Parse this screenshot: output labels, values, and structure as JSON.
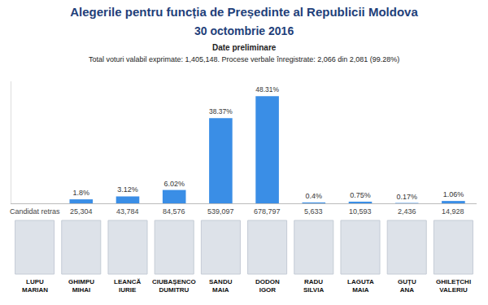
{
  "chart_data": {
    "type": "bar",
    "title": "Alegerile pentru funcția de Președinte al Republicii Moldova",
    "subtitle": "30 octombrie 2016",
    "annotations": [
      "Date preliminare",
      "Total voturi valabil exprimate: 1,405,148. Procese verbale înregistrate: 2,066 din 2,081 (99.28%)"
    ],
    "categories": [
      "LUPU MARIAN",
      "GHIMPU MIHAI",
      "LEANCĂ IURIE",
      "CIUBAȘENCO DUMITRU",
      "SANDU MAIA",
      "DODON IGOR",
      "RADU SILVIA",
      "LAGUTA MAIA",
      "GUȚU ANA",
      "GHILEȚCHI VALERIU"
    ],
    "values": [
      null,
      1.8,
      3.12,
      6.02,
      38.37,
      48.31,
      0.4,
      0.75,
      0.17,
      1.06
    ],
    "value_labels": [
      null,
      "1.8%",
      "3.12%",
      "6.02%",
      "38.37%",
      "48.31%",
      "0.4%",
      "0.75%",
      "0.17%",
      "1.06%"
    ],
    "votes": [
      null,
      25304,
      43784,
      84576,
      539097,
      678797,
      5633,
      10593,
      2436,
      14928
    ],
    "vote_labels": [
      "Candidat retras",
      "25,304",
      "43,784",
      "84,576",
      "539,097",
      "678,797",
      "5,633",
      "10,593",
      "2,436",
      "14,928"
    ],
    "color": "#3a8ee6",
    "ylim": [
      0,
      55
    ],
    "yticks": [],
    "grid": false,
    "data_labels": true,
    "tick_labels": false
  }
}
